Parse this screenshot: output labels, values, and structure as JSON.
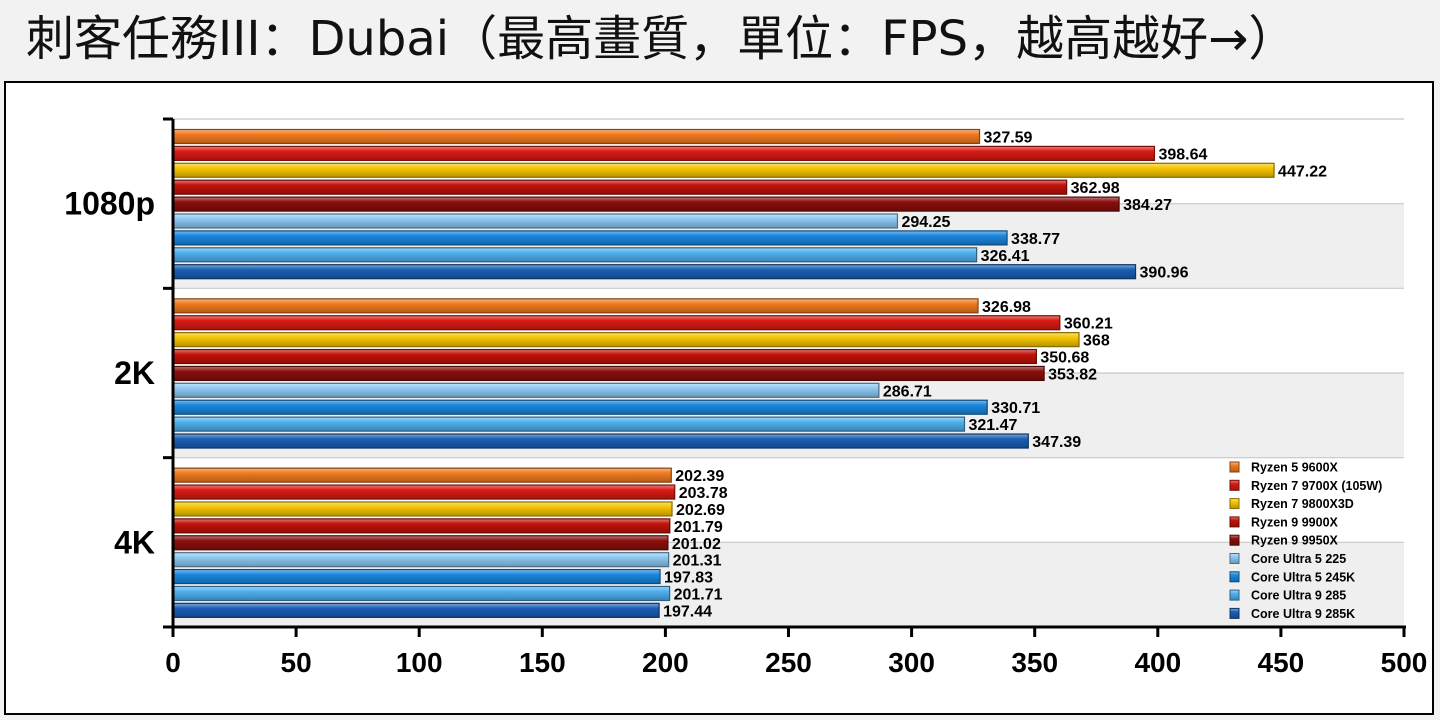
{
  "title": "刺客任務III：Dubai（最高畫質，單位：FPS，越高越好→）",
  "chart_data": {
    "type": "bar",
    "orientation": "horizontal",
    "title": "刺客任務III：Dubai（最高畫質，單位：FPS，越高越好→）",
    "xlim": [
      0,
      500
    ],
    "xticks": [
      "0",
      "50",
      "100",
      "150",
      "200",
      "250",
      "300",
      "350",
      "400",
      "450",
      "500"
    ],
    "grid": "horizontal",
    "legend_position": "bottom-right",
    "categories": [
      "1080p",
      "2K",
      "4K"
    ],
    "series": [
      {
        "name": "Ryzen 5 9600X",
        "color": "#f07a1e",
        "values": [
          327.59,
          326.98,
          202.39
        ]
      },
      {
        "name": "Ryzen 7 9700X (105W)",
        "color": "#d91a12",
        "values": [
          398.64,
          360.21,
          203.78
        ]
      },
      {
        "name": "Ryzen 7 9800X3D",
        "color": "#f5c400",
        "values": [
          447.22,
          368,
          202.69
        ]
      },
      {
        "name": "Ryzen 9 9900X",
        "color": "#c11208",
        "values": [
          362.98,
          350.68,
          201.79
        ]
      },
      {
        "name": "Ryzen 9 9950X",
        "color": "#8a0f0c",
        "values": [
          384.27,
          353.82,
          201.02
        ]
      },
      {
        "name": "Core Ultra 5 225",
        "color": "#8cc8f2",
        "values": [
          294.25,
          286.71,
          201.31
        ]
      },
      {
        "name": "Core Ultra 5 245K",
        "color": "#1a86de",
        "values": [
          338.77,
          330.71,
          197.83
        ]
      },
      {
        "name": "Core Ultra 9 285",
        "color": "#4fb0ee",
        "values": [
          326.41,
          321.47,
          201.71
        ]
      },
      {
        "name": "Core Ultra 9 285K",
        "color": "#1a5fb4",
        "values": [
          390.96,
          347.39,
          197.44
        ]
      }
    ],
    "value_labels": [
      [
        "327.59",
        "398.64",
        "447.22",
        "362.98",
        "384.27",
        "294.25",
        "338.77",
        "326.41",
        "390.96"
      ],
      [
        "326.98",
        "360.21",
        "368",
        "350.68",
        "353.82",
        "286.71",
        "330.71",
        "321.47",
        "347.39"
      ],
      [
        "202.39",
        "203.78",
        "202.69",
        "201.79",
        "201.02",
        "201.31",
        "197.83",
        "201.71",
        "197.44"
      ]
    ]
  }
}
